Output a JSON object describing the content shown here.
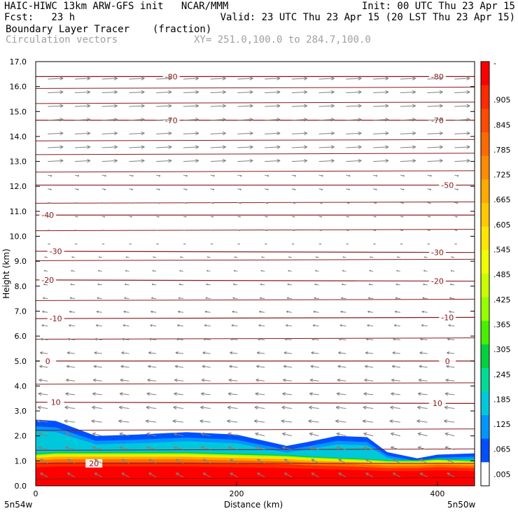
{
  "header": {
    "line1_left": "HAIC-HIWC 13km ARW-GFS init   NCAR/MMM",
    "line1_right": "Init: 00 UTC Thu 23 Apr 15",
    "line2_left": "Fcst:   23 h",
    "line2_right": "Valid: 23 UTC Thu 23 Apr 15 (20 LST Thu 23 Apr 15)",
    "field_name": "Boundary Layer Tracer",
    "field_units": "(fraction)",
    "overlay_name": "Circulation vectors",
    "xsec_info": "XY= 251.0,100.0 to 284.7,100.0"
  },
  "colors": {
    "contour": "#8b1a1a",
    "vector": "#808080",
    "frame": "#000000"
  },
  "chart_data": {
    "type": "heatmap",
    "title": "Boundary Layer Tracer (fraction)",
    "xlabel": "Distance (km)",
    "ylabel": "Height (km)",
    "xlim": [
      0,
      437
    ],
    "ylim": [
      0,
      17
    ],
    "x_ticks": [
      0,
      200,
      400
    ],
    "y_ticks": [
      0.0,
      1.0,
      2.0,
      3.0,
      4.0,
      5.0,
      6.0,
      7.0,
      8.0,
      9.0,
      10.0,
      11.0,
      12.0,
      13.0,
      14.0,
      15.0,
      16.0,
      17.0
    ],
    "y_tick_labels": [
      "0.0",
      "1.0",
      "2.0",
      "3.0",
      "4.0",
      "5.0",
      "6.0",
      "7.0",
      "8.0",
      "9.0",
      "10.0",
      "11.0",
      "12.0",
      "13.0",
      "14.0",
      "15.0",
      "16.0",
      "17.0"
    ],
    "x_endpoint_labels": [
      "5n54w",
      "5n50w"
    ],
    "colorbar": {
      "labels": [
        "-",
        ".905",
        ".845",
        ".785",
        ".725",
        ".665",
        ".605",
        ".545",
        ".485",
        ".425",
        ".365",
        ".305",
        ".245",
        ".185",
        ".125",
        ".065",
        ".005"
      ],
      "colors": [
        "#ff0000",
        "#ff2a00",
        "#ff4a00",
        "#ff6a00",
        "#ff8c00",
        "#ffaa00",
        "#ffc800",
        "#ffe600",
        "#f0ff00",
        "#c8ff00",
        "#96ff00",
        "#46f000",
        "#00d23c",
        "#00dc96",
        "#00c8dc",
        "#0096ff",
        "#0050ff",
        "#ffffff"
      ]
    },
    "tracer_top_km": [
      {
        "x": 0,
        "blue": 2.65,
        "orange": 1.2
      },
      {
        "x": 20,
        "blue": 2.6,
        "orange": 1.25
      },
      {
        "x": 40,
        "blue": 2.3,
        "orange": 1.25
      },
      {
        "x": 60,
        "blue": 2.0,
        "orange": 1.25
      },
      {
        "x": 100,
        "blue": 2.05,
        "orange": 1.25
      },
      {
        "x": 150,
        "blue": 2.15,
        "orange": 1.25
      },
      {
        "x": 200,
        "blue": 2.05,
        "orange": 1.2
      },
      {
        "x": 250,
        "blue": 1.6,
        "orange": 1.15
      },
      {
        "x": 270,
        "blue": 1.75,
        "orange": 1.1
      },
      {
        "x": 300,
        "blue": 2.0,
        "orange": 1.05
      },
      {
        "x": 330,
        "blue": 1.95,
        "orange": 1.0
      },
      {
        "x": 350,
        "blue": 1.35,
        "orange": 0.95
      },
      {
        "x": 380,
        "blue": 1.1,
        "orange": 0.95
      },
      {
        "x": 400,
        "blue": 1.25,
        "orange": 1.0
      },
      {
        "x": 437,
        "blue": 1.3,
        "orange": 0.95
      }
    ],
    "temperature_contours": [
      {
        "label": "-80",
        "y": [
          16.4,
          16.4
        ],
        "labels_at_x": [
          135,
          400
        ]
      },
      {
        "label": "-70",
        "y": [
          14.65,
          14.65
        ],
        "labels_at_x": [
          135,
          400
        ]
      },
      {
        "label": "-50",
        "y": [
          12.05,
          12.05
        ],
        "labels_at_x": [
          410
        ]
      },
      {
        "label": "-40",
        "y": [
          10.85,
          10.85
        ],
        "labels_at_x": [
          12
        ]
      },
      {
        "label": "-30",
        "y": [
          9.4,
          9.35
        ],
        "labels_at_x": [
          20,
          400
        ]
      },
      {
        "label": "-20",
        "y": [
          8.25,
          8.2
        ],
        "labels_at_x": [
          12,
          400
        ]
      },
      {
        "label": "-10",
        "y": [
          6.7,
          6.75
        ],
        "labels_at_x": [
          20,
          410
        ]
      },
      {
        "label": "0",
        "y": [
          5.0,
          5.0
        ],
        "labels_at_x": [
          12,
          410
        ]
      },
      {
        "label": "10",
        "y": [
          3.35,
          3.3
        ],
        "labels_at_x": [
          20,
          400
        ]
      },
      {
        "label": "20",
        "y": [
          0.9,
          0.9
        ],
        "labels_at_x": [
          58
        ]
      }
    ],
    "isentrope_levels_km": [
      0.3,
      1.45,
      2.25,
      4.1,
      5.9,
      7.45,
      9.05,
      10.25,
      11.35,
      12.6,
      13.3,
      13.85,
      15.35,
      15.95
    ]
  }
}
